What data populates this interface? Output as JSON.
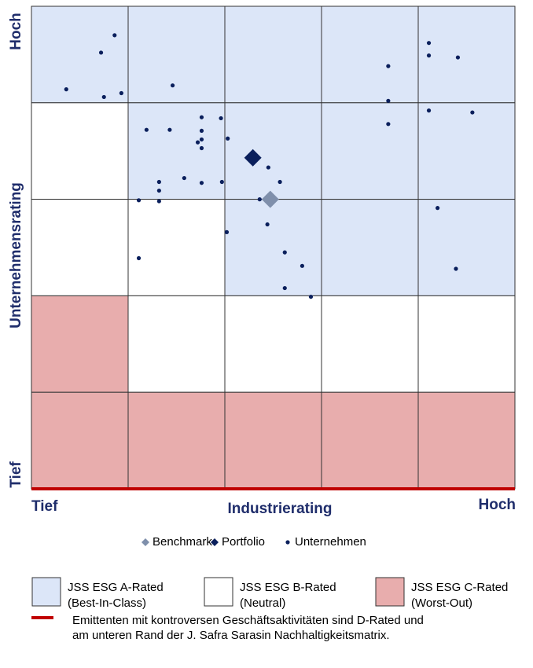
{
  "chart_data": {
    "type": "scatter",
    "xlabel": "Industrierating",
    "ylabel": "Unternehmensrating",
    "x_end_labels": [
      "Tief",
      "Hoch"
    ],
    "y_end_labels": [
      "Tief",
      "Hoch"
    ],
    "xlim": [
      0,
      5
    ],
    "ylim": [
      0,
      5
    ],
    "series": [
      {
        "name": "Benchmark",
        "color": "#7f8fab",
        "marker": "diamond",
        "size": 11,
        "x": [
          2.47
        ],
        "values": [
          3.0
        ]
      },
      {
        "name": "Portfolio",
        "color": "#0a1f5c",
        "marker": "diamond",
        "size": 11,
        "x": [
          2.29
        ],
        "values": [
          3.43
        ]
      },
      {
        "name": "Unternehmen",
        "color": "#0a1f5c",
        "marker": "dot",
        "size": 2.6,
        "x": [
          0.36,
          0.72,
          0.86,
          0.75,
          0.93,
          1.46,
          1.19,
          1.43,
          1.76,
          1.76,
          1.72,
          1.76,
          1.76,
          1.96,
          2.03,
          1.58,
          1.76,
          1.97,
          1.32,
          1.32,
          1.11,
          1.32,
          1.11,
          2.45,
          2.57,
          2.36,
          2.02,
          2.44,
          2.62,
          2.8,
          2.62,
          2.89,
          3.69,
          4.11,
          4.11,
          4.41,
          3.69,
          3.69,
          4.11,
          4.56,
          4.2,
          4.39
        ],
        "values": [
          4.14,
          4.52,
          4.7,
          4.06,
          4.1,
          4.18,
          3.72,
          3.72,
          3.85,
          3.71,
          3.59,
          3.62,
          3.53,
          3.84,
          3.63,
          3.22,
          3.17,
          3.18,
          3.18,
          3.09,
          2.99,
          2.98,
          2.39,
          3.33,
          3.18,
          3.0,
          2.66,
          2.74,
          2.45,
          2.31,
          2.08,
          1.99,
          4.38,
          4.62,
          4.49,
          4.47,
          4.02,
          3.78,
          3.92,
          3.9,
          2.91,
          2.28
        ]
      }
    ]
  },
  "zones": [
    {
      "title": "JSS ESG A-Rated",
      "subtitle": "(Best-In-Class)",
      "color": "#dce6f8"
    },
    {
      "title": "JSS ESG B-Rated",
      "subtitle": "(Neutral)",
      "color": "#ffffff"
    },
    {
      "title": "JSS ESG C-Rated",
      "subtitle": "(Worst-Out)",
      "color": "#e8adad"
    }
  ],
  "note": {
    "color": "#c00000",
    "lines": [
      "Emittenten mit kontroversen Geschäftsaktivitäten sind D-Rated und",
      "am unteren Rand der J. Safra Sarasin Nachhaltigkeitsmatrix."
    ]
  }
}
